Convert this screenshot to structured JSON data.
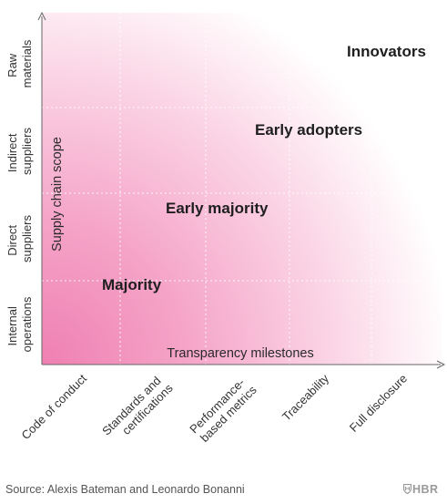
{
  "diagram": {
    "y_axis_title": "Supply chain scope",
    "x_axis_title": "Transparency milestones",
    "y_categories": [
      "Internal operations",
      "Direct suppliers",
      "Indirect suppliers",
      "Raw materials"
    ],
    "y_label_lines": [
      [
        "Internal",
        "operations"
      ],
      [
        "Direct",
        "suppliers"
      ],
      [
        "Indirect",
        "suppliers"
      ],
      [
        "Raw",
        "materials"
      ]
    ],
    "x_categories": [
      "Code of conduct",
      "Standards and certifications",
      "Performance-based metrics",
      "Traceability",
      "Full disclosure"
    ],
    "x_label_lines": [
      [
        "Code of conduct"
      ],
      [
        "Standards and",
        "certifications"
      ],
      [
        "Performance-",
        "based metrics"
      ],
      [
        "Traceability"
      ],
      [
        "Full disclosure"
      ]
    ],
    "segments": [
      "Majority",
      "Early majority",
      "Early adopters",
      "Innovators"
    ],
    "colors": {
      "gradient_strong": "#ef7fb2",
      "gradient_weak": "#ffffff",
      "grid": "#ffffff",
      "axis": "#666666"
    }
  },
  "footer": {
    "source": "Source: Alexis Bateman and Leonardo Bonanni",
    "logo_text": "HBR"
  }
}
